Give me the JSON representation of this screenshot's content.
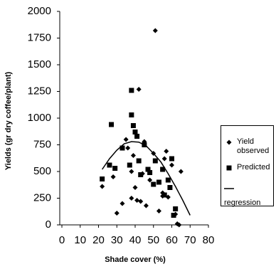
{
  "chart_data": {
    "type": "scatter",
    "x_label": "Shade cover (%)",
    "y_label": "Yields (gr dry coffee/plant)",
    "xlim": [
      0,
      80
    ],
    "xticks": [
      0,
      10,
      20,
      30,
      40,
      50,
      60,
      70,
      80
    ],
    "ylim": [
      0,
      2000
    ],
    "yticks": [
      0,
      250,
      500,
      750,
      1000,
      1250,
      1500,
      1750,
      2000
    ],
    "grid": false,
    "legend": "right",
    "series": [
      {
        "name": "Yield observed",
        "marker": "diamond",
        "color": "#000000",
        "x": [
          22,
          28,
          30,
          33,
          35,
          36,
          38,
          38,
          39,
          40,
          41,
          42,
          43,
          44,
          45,
          46,
          48,
          50,
          51,
          53,
          55,
          55,
          56,
          57,
          58,
          60,
          62,
          63,
          64,
          65
        ],
        "values": [
          360,
          450,
          110,
          200,
          800,
          720,
          250,
          500,
          650,
          350,
          230,
          1270,
          220,
          480,
          780,
          180,
          420,
          670,
          1820,
          130,
          270,
          300,
          620,
          690,
          260,
          560,
          100,
          10,
          0,
          500
        ]
      },
      {
        "name": "Predicted",
        "marker": "square",
        "color": "#000000",
        "x": [
          22,
          26,
          27,
          29,
          33,
          37,
          38,
          38,
          39,
          40,
          41,
          42,
          43,
          45,
          47,
          48,
          50,
          51,
          53,
          55,
          56,
          58,
          59,
          60,
          61,
          62
        ],
        "values": [
          430,
          560,
          940,
          530,
          720,
          560,
          1260,
          1030,
          930,
          870,
          830,
          600,
          470,
          750,
          520,
          490,
          380,
          600,
          400,
          520,
          280,
          420,
          350,
          620,
          90,
          150
        ]
      },
      {
        "name": "regression",
        "marker": "line",
        "color": "#000000",
        "x": [
          22,
          26,
          30,
          34,
          38,
          42,
          46,
          50,
          54,
          58,
          62,
          66,
          70
        ],
        "values": [
          520,
          620,
          700,
          760,
          780,
          775,
          740,
          670,
          590,
          480,
          360,
          230,
          90
        ]
      }
    ]
  }
}
